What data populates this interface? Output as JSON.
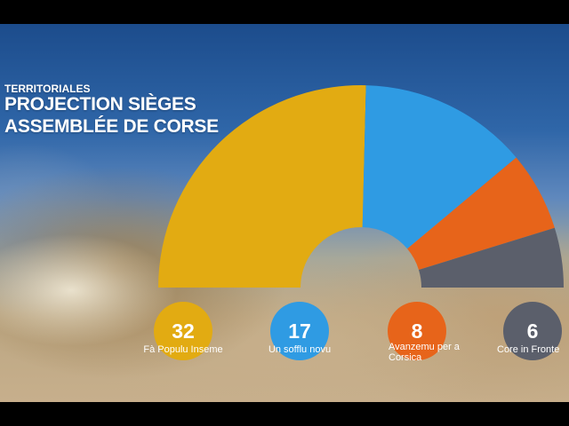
{
  "header": {
    "kicker": "TERRITORIALES",
    "title_line1": "PROJECTION SIÈGES",
    "title_line2": "ASSEMBLÉE DE CORSE"
  },
  "chart_data": {
    "type": "pie",
    "variant": "half-donut",
    "categories": [
      "Fà Populu Inseme",
      "Un sofflu novu",
      "Avanzemu per a Corsica",
      "Core in Fronte"
    ],
    "values": [
      32,
      17,
      8,
      6
    ],
    "colors": [
      "#e2ab12",
      "#2f9be3",
      "#e7641a",
      "#5b5f6b"
    ],
    "legend_placement": "bottom"
  },
  "parties": [
    {
      "seats": "32",
      "name": "Fà Populu Inseme",
      "color": "#e2ab12"
    },
    {
      "seats": "17",
      "name": "Un sofflu novu",
      "color": "#2f9be3"
    },
    {
      "seats": "8",
      "name": "Avanzemu per a Corsica",
      "color": "#e7641a"
    },
    {
      "seats": "6",
      "name": "Core in Fronte",
      "color": "#5b5f6b"
    }
  ]
}
